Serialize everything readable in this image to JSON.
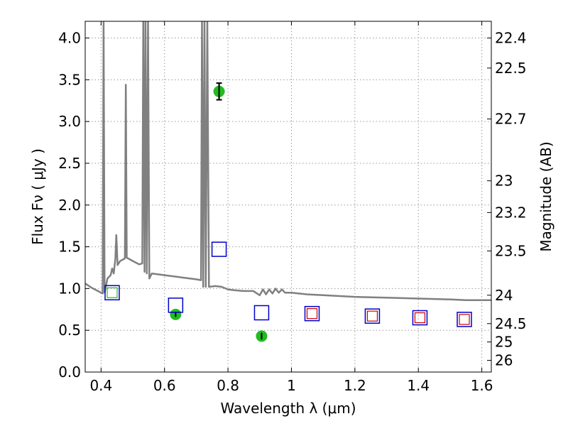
{
  "chart_data": {
    "type": "scatter",
    "xlabel": "Wavelength  λ (μm)",
    "ylabel": "Flux  Fν  ( μJy )",
    "y2label": "Magnitude (AB)",
    "xlim": [
      0.35,
      1.63
    ],
    "ylim": [
      0.0,
      4.2
    ],
    "grid": true,
    "x_ticks": [
      {
        "value": 0.4,
        "label": "0.4"
      },
      {
        "value": 0.6,
        "label": "0.6"
      },
      {
        "value": 0.8,
        "label": "0.8"
      },
      {
        "value": 1.0,
        "label": "1"
      },
      {
        "value": 1.2,
        "label": "1.2"
      },
      {
        "value": 1.4,
        "label": "1.4"
      },
      {
        "value": 1.6,
        "label": "1.6"
      }
    ],
    "y_ticks": [
      {
        "value": 0.0,
        "label": "0.0"
      },
      {
        "value": 0.5,
        "label": "0.5"
      },
      {
        "value": 1.0,
        "label": "1.0"
      },
      {
        "value": 1.5,
        "label": "1.5"
      },
      {
        "value": 2.0,
        "label": "2.0"
      },
      {
        "value": 2.5,
        "label": "2.5"
      },
      {
        "value": 3.0,
        "label": "3.0"
      },
      {
        "value": 3.5,
        "label": "3.5"
      },
      {
        "value": 4.0,
        "label": "4.0"
      }
    ],
    "y2_ticks": [
      {
        "flux": 4.0,
        "label": "22.4"
      },
      {
        "flux": 3.64,
        "label": "22.5"
      },
      {
        "flux": 3.03,
        "label": "22.7"
      },
      {
        "flux": 2.29,
        "label": "23"
      },
      {
        "flux": 1.91,
        "label": "23.2"
      },
      {
        "flux": 1.45,
        "label": "23.5"
      },
      {
        "flux": 0.92,
        "label": "24"
      },
      {
        "flux": 0.58,
        "label": "24.5"
      },
      {
        "flux": 0.36,
        "label": "25"
      },
      {
        "flux": 0.14,
        "label": "26"
      }
    ],
    "series": [
      {
        "kind": "model-spectrum",
        "color": "#808080",
        "points": [
          [
            0.35,
            1.06
          ],
          [
            0.37,
            1.01
          ],
          [
            0.39,
            0.97
          ],
          [
            0.4,
            0.95
          ],
          [
            0.405,
            0.94
          ],
          [
            0.408,
            4.2
          ],
          [
            0.411,
            0.95
          ],
          [
            0.42,
            1.12
          ],
          [
            0.43,
            1.16
          ],
          [
            0.435,
            1.24
          ],
          [
            0.44,
            1.18
          ],
          [
            0.445,
            1.36
          ],
          [
            0.448,
            1.64
          ],
          [
            0.452,
            1.28
          ],
          [
            0.46,
            1.33
          ],
          [
            0.475,
            1.36
          ],
          [
            0.478,
            3.44
          ],
          [
            0.481,
            1.37
          ],
          [
            0.5,
            1.33
          ],
          [
            0.52,
            1.29
          ],
          [
            0.53,
            1.3
          ],
          [
            0.533,
            4.2
          ],
          [
            0.537,
            1.2
          ],
          [
            0.54,
            4.2
          ],
          [
            0.544,
            1.18
          ],
          [
            0.548,
            4.2
          ],
          [
            0.552,
            1.12
          ],
          [
            0.56,
            1.18
          ],
          [
            0.58,
            1.17
          ],
          [
            0.6,
            1.16
          ],
          [
            0.62,
            1.15
          ],
          [
            0.64,
            1.14
          ],
          [
            0.66,
            1.13
          ],
          [
            0.68,
            1.12
          ],
          [
            0.7,
            1.11
          ],
          [
            0.715,
            1.1
          ],
          [
            0.718,
            4.2
          ],
          [
            0.722,
            1.02
          ],
          [
            0.726,
            4.2
          ],
          [
            0.73,
            1.02
          ],
          [
            0.735,
            4.2
          ],
          [
            0.74,
            1.02
          ],
          [
            0.76,
            1.03
          ],
          [
            0.78,
            1.02
          ],
          [
            0.8,
            0.99
          ],
          [
            0.82,
            0.98
          ],
          [
            0.85,
            0.97
          ],
          [
            0.88,
            0.97
          ],
          [
            0.9,
            0.92
          ],
          [
            0.91,
            0.99
          ],
          [
            0.92,
            0.93
          ],
          [
            0.93,
            0.99
          ],
          [
            0.94,
            0.94
          ],
          [
            0.95,
            1.0
          ],
          [
            0.96,
            0.95
          ],
          [
            0.97,
            0.99
          ],
          [
            0.98,
            0.95
          ],
          [
            1.0,
            0.95
          ],
          [
            1.05,
            0.93
          ],
          [
            1.1,
            0.92
          ],
          [
            1.2,
            0.9
          ],
          [
            1.3,
            0.89
          ],
          [
            1.4,
            0.88
          ],
          [
            1.5,
            0.87
          ],
          [
            1.55,
            0.86
          ],
          [
            1.63,
            0.86
          ]
        ]
      },
      {
        "kind": "photometry",
        "marker": "circle",
        "color": "#22bb22",
        "points": [
          {
            "x": 0.635,
            "y": 0.69,
            "err": 0.03
          },
          {
            "x": 0.772,
            "y": 3.36,
            "err": 0.1
          },
          {
            "x": 0.906,
            "y": 0.43,
            "err": 0.04
          }
        ]
      },
      {
        "kind": "model-photometry",
        "marker": "square",
        "color": "#0000cc",
        "points": [
          {
            "x": 0.435,
            "y": 0.95
          },
          {
            "x": 0.635,
            "y": 0.8
          },
          {
            "x": 0.772,
            "y": 1.47
          },
          {
            "x": 0.906,
            "y": 0.71
          },
          {
            "x": 1.065,
            "y": 0.7
          },
          {
            "x": 1.255,
            "y": 0.67
          },
          {
            "x": 1.405,
            "y": 0.65
          },
          {
            "x": 1.545,
            "y": 0.63
          }
        ]
      },
      {
        "kind": "model-photometry-inner",
        "marker": "square",
        "color": "#cc0000",
        "points": [
          {
            "x": 1.065,
            "y": 0.7
          },
          {
            "x": 1.255,
            "y": 0.67
          },
          {
            "x": 1.405,
            "y": 0.65
          },
          {
            "x": 1.545,
            "y": 0.63
          }
        ]
      },
      {
        "kind": "model-photometry-inner",
        "marker": "square",
        "color": "#22bb22",
        "points": [
          {
            "x": 0.435,
            "y": 0.95
          }
        ]
      }
    ]
  }
}
